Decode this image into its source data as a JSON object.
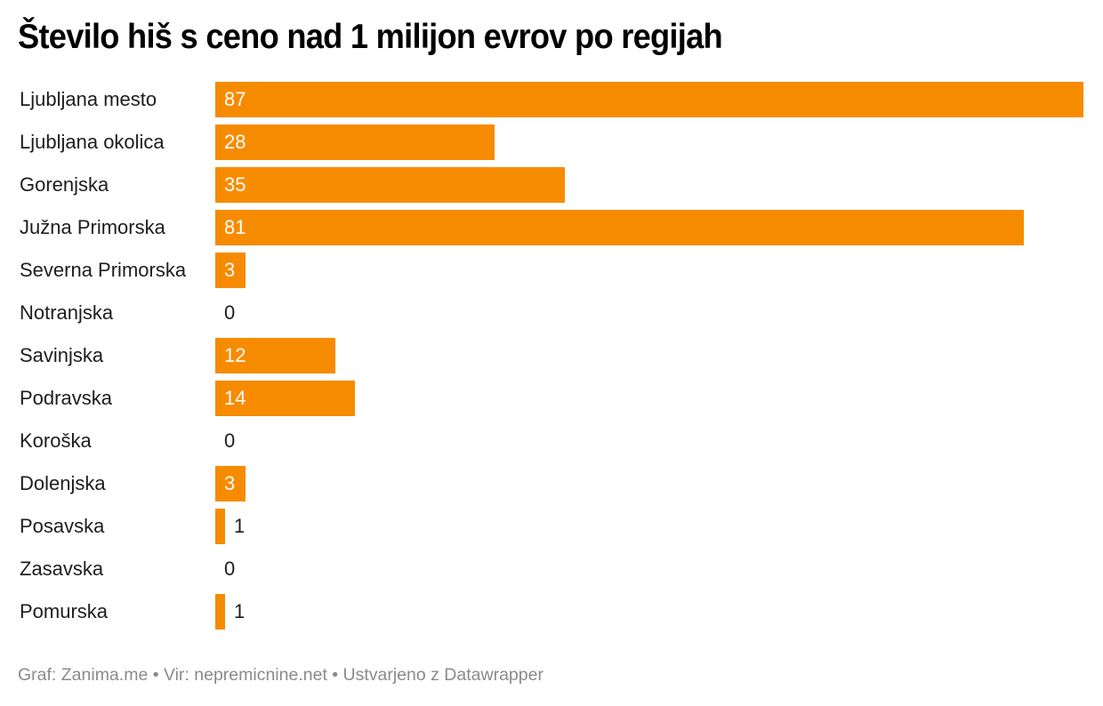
{
  "header": {
    "title": "Število hiš s ceno nad 1 milijon evrov po regijah"
  },
  "footer": {
    "text": "Graf: Zanima.me • Vir: nepremicnine.net • Ustvarjeno z Datawrapper"
  },
  "colors": {
    "bar": "#f78b00",
    "label_inside": "#ffffff",
    "label_outside": "#1d1d1d",
    "footer": "#8a8a8a"
  },
  "chart_data": {
    "type": "bar",
    "orientation": "horizontal",
    "title": "Število hiš s ceno nad 1 milijon evrov po regijah",
    "xlabel": "",
    "ylabel": "",
    "grid": false,
    "legend": null,
    "xlim": [
      0,
      87
    ],
    "categories": [
      "Ljubljana mesto",
      "Ljubljana okolica",
      "Gorenjska",
      "Južna Primorska",
      "Severna Primorska",
      "Notranjska",
      "Savinjska",
      "Podravska",
      "Koroška",
      "Dolenjska",
      "Posavska",
      "Zasavska",
      "Pomurska"
    ],
    "values": [
      87,
      28,
      35,
      81,
      3,
      0,
      12,
      14,
      0,
      3,
      1,
      0,
      1
    ],
    "source": "Graf: Zanima.me • Vir: nepremicnine.net • Ustvarjeno z Datawrapper"
  }
}
